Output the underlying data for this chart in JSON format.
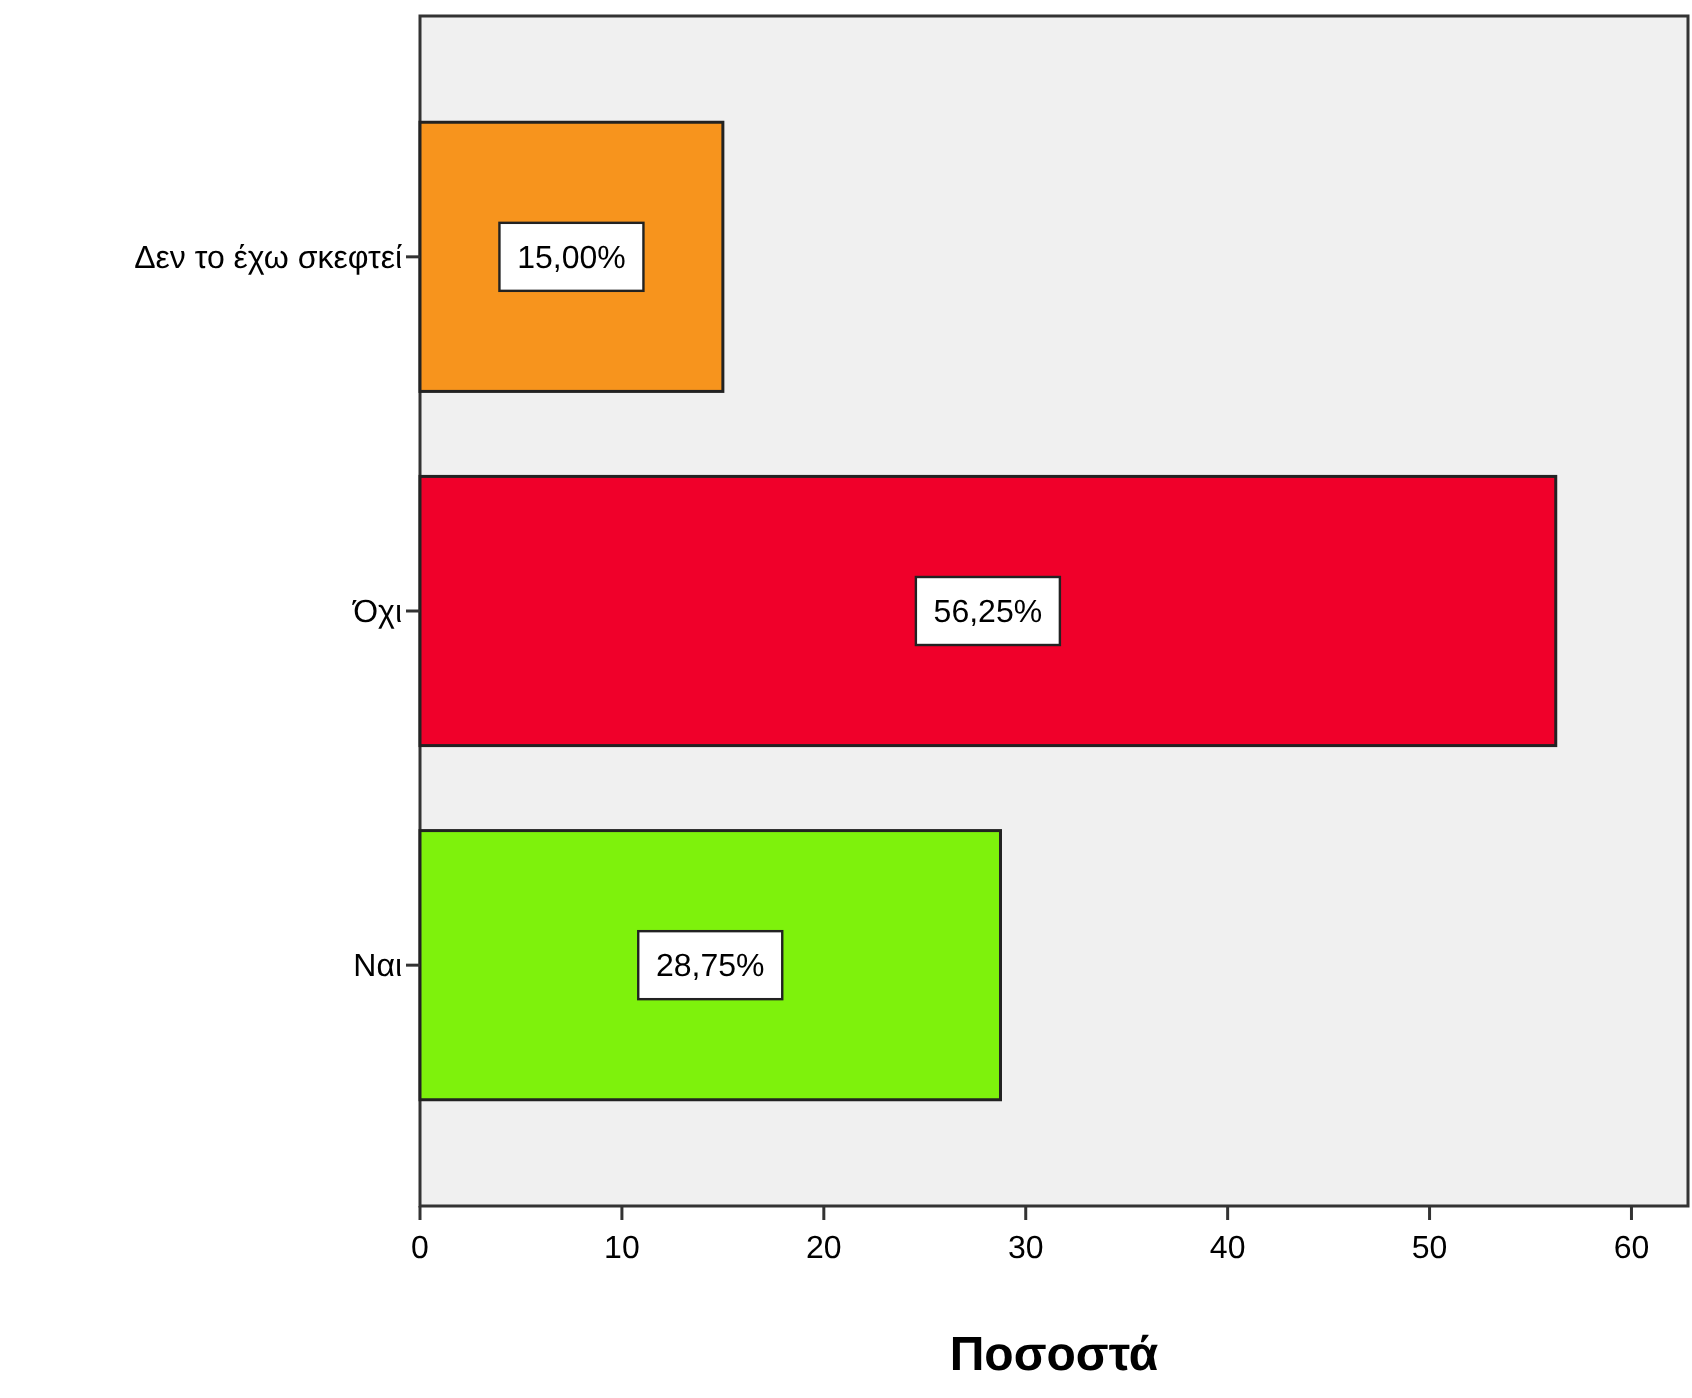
{
  "chart_data": {
    "type": "bar",
    "orientation": "horizontal",
    "xlabel": "Ποσοστά",
    "categories": [
      "Δεν το έχω σκεφτεί",
      "Όχι",
      "Ναι"
    ],
    "values": [
      15,
      56.25,
      28.75
    ],
    "colors": [
      "#f7941d",
      "#f0002a",
      "#7ef20c"
    ],
    "value_labels": [
      "15,00%",
      "56,25%",
      "28,75%"
    ],
    "xlim": [
      0,
      62.8
    ],
    "xticks": [
      0,
      10,
      20,
      30,
      40,
      50,
      60
    ]
  }
}
